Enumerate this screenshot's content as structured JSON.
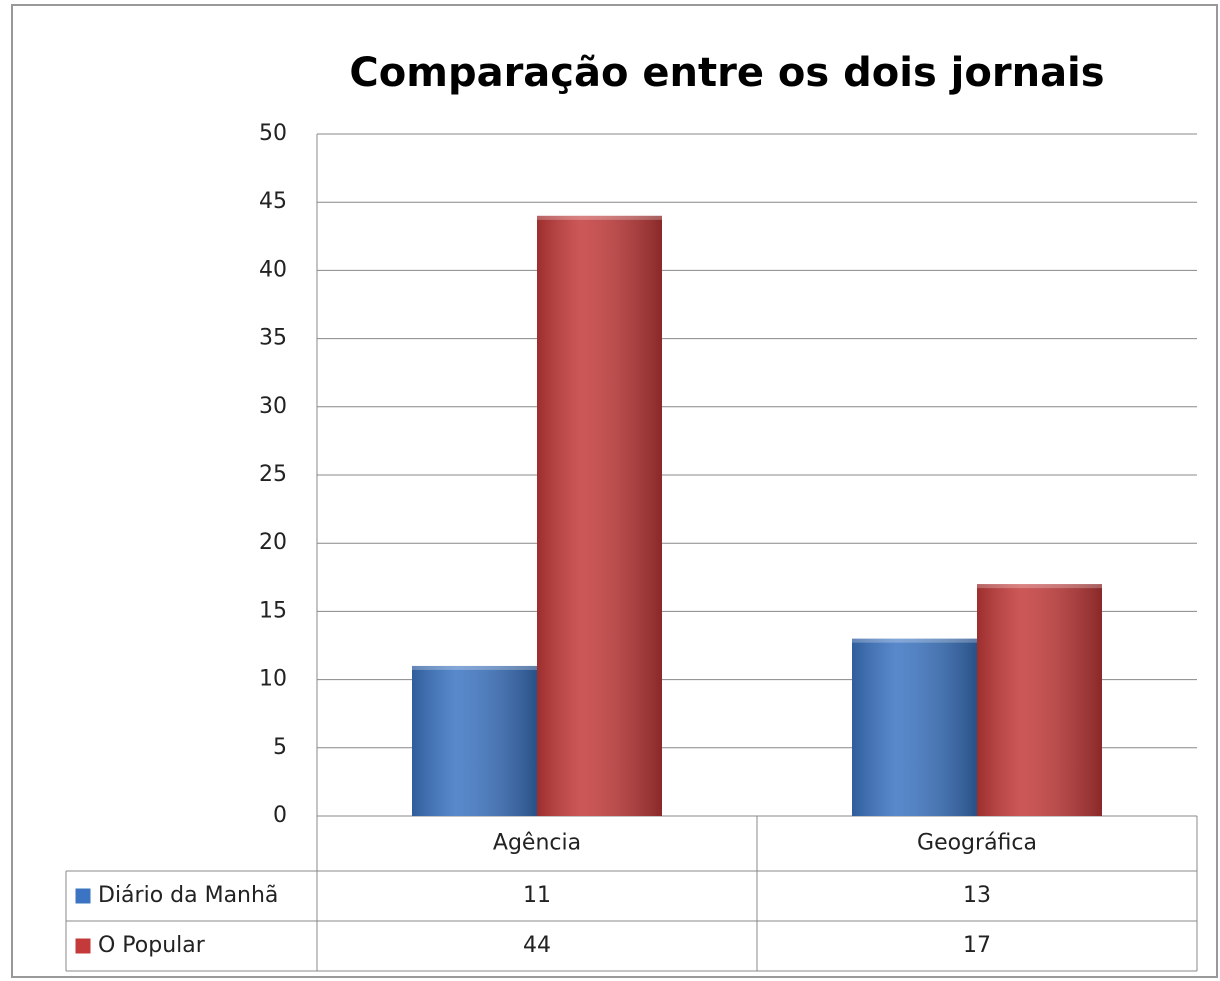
{
  "chart_data": {
    "type": "bar",
    "title": "Comparação entre os dois jornais",
    "categories": [
      "Agência",
      "Geográfica"
    ],
    "series": [
      {
        "name": "Diário da Manhã",
        "color": "#3b74c2",
        "values": [
          11,
          13
        ]
      },
      {
        "name": "O Popular",
        "color": "#c43a3a",
        "values": [
          44,
          17
        ]
      }
    ],
    "ylim": [
      0,
      50
    ],
    "yticks": [
      0,
      5,
      10,
      15,
      20,
      25,
      30,
      35,
      40,
      45,
      50
    ],
    "grid": true,
    "legend": "data-table"
  }
}
